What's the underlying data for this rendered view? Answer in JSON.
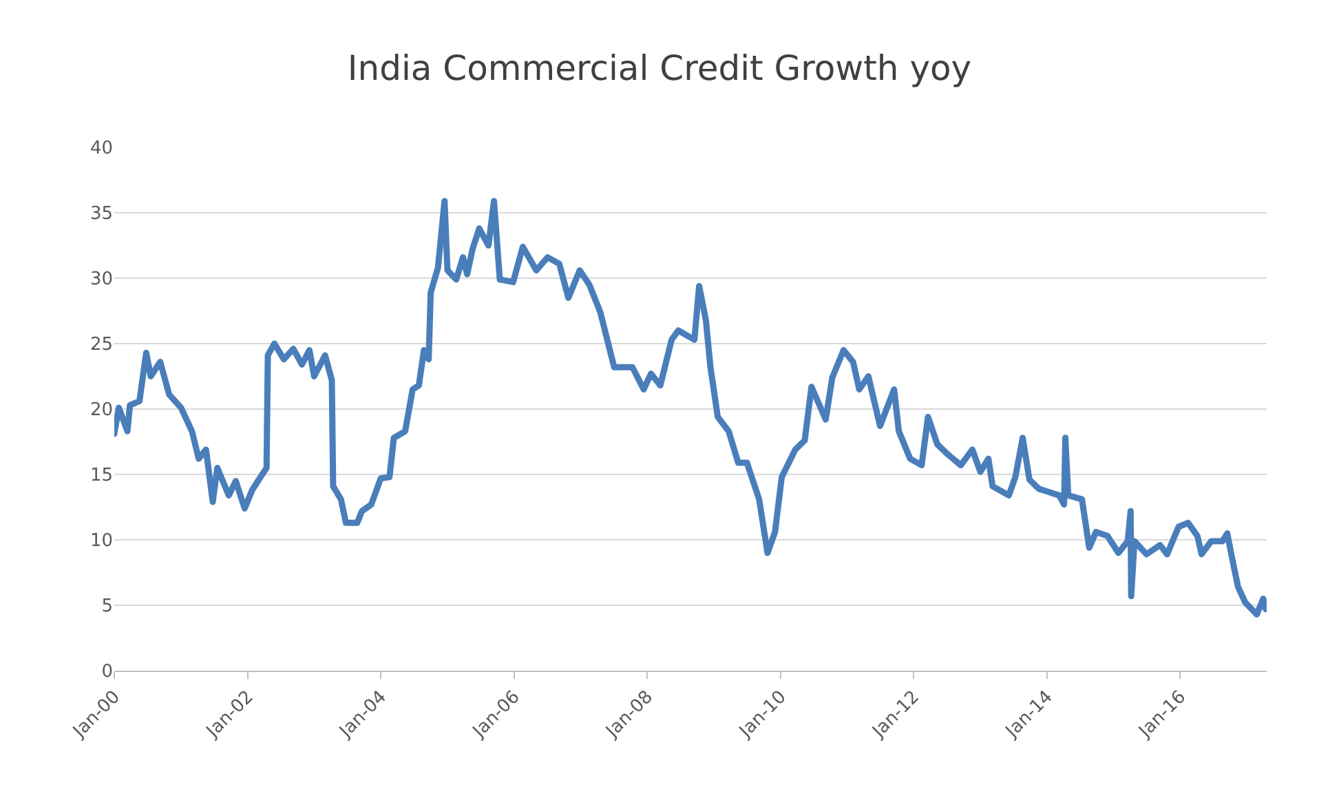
{
  "chart_data": {
    "type": "line",
    "title": "India Commercial Credit Growth yoy",
    "series": [
      {
        "color": "#4a7ebb",
        "x": [
          "2000-01-01",
          "2000-01-26",
          "2000-03-13",
          "2000-03-27",
          "2000-05-18",
          "2000-06-24",
          "2000-07-19",
          "2000-09-09",
          "2000-10-28",
          "2001-01-01",
          "2001-03-02",
          "2001-04-08",
          "2001-05-18",
          "2001-06-24",
          "2001-07-19",
          "2001-09-20",
          "2001-10-28",
          "2001-12-16",
          "2002-01-26",
          "2002-03-13",
          "2002-04-15",
          "2002-04-22",
          "2002-05-28",
          "2002-07-19",
          "2002-09-09",
          "2002-10-26",
          "2002-12-06",
          "2003-01-01",
          "2003-03-02",
          "2003-04-08",
          "2003-04-15",
          "2003-05-28",
          "2003-06-24",
          "2003-08-25",
          "2003-09-20",
          "2003-11-10",
          "2004-01-01",
          "2004-02-18",
          "2004-03-13",
          "2004-05-14",
          "2004-06-24",
          "2004-07-28",
          "2004-08-25",
          "2004-09-20",
          "2004-10-01",
          "2004-11-10",
          "2004-12-16",
          "2005-01-01",
          "2005-02-18",
          "2005-03-27",
          "2005-04-19",
          "2005-05-18",
          "2005-06-24",
          "2005-08-14",
          "2005-09-13",
          "2005-10-15",
          "2005-12-27",
          "2006-02-18",
          "2006-05-03",
          "2006-07-04",
          "2006-09-06",
          "2006-10-26",
          "2006-12-27",
          "2007-02-18",
          "2007-04-19",
          "2007-07-04",
          "2007-10-12",
          "2007-12-13",
          "2008-01-22",
          "2008-03-13",
          "2008-05-14",
          "2008-06-20",
          "2008-09-16",
          "2008-10-12",
          "2008-11-18",
          "2008-12-13",
          "2009-01-22",
          "2009-03-23",
          "2009-05-14",
          "2009-07-01",
          "2009-09-06",
          "2009-10-22",
          "2009-12-02",
          "2010-01-08",
          "2010-03-23",
          "2010-05-14",
          "2010-06-20",
          "2010-09-06",
          "2010-10-12",
          "2010-12-13",
          "2011-02-03",
          "2011-03-09",
          "2011-04-28",
          "2011-07-01",
          "2011-09-16",
          "2011-10-12",
          "2011-12-13",
          "2012-02-14",
          "2012-03-20",
          "2012-05-10",
          "2012-07-01",
          "2012-09-16",
          "2012-11-18",
          "2013-01-01",
          "2013-02-14",
          "2013-03-09",
          "2013-06-06",
          "2013-07-12",
          "2013-08-21",
          "2013-09-27",
          "2013-11-18",
          "2014-03-09",
          "2014-04-05",
          "2014-04-12",
          "2014-04-28",
          "2014-07-12",
          "2014-08-21",
          "2014-09-27",
          "2014-11-29",
          "2015-01-28",
          "2015-03-20",
          "2015-04-05",
          "2015-04-08",
          "2015-04-26",
          "2015-07-01",
          "2015-09-13",
          "2015-10-22",
          "2015-12-24",
          "2016-02-14",
          "2016-04-05",
          "2016-04-28",
          "2016-06-20",
          "2016-08-21",
          "2016-09-16",
          "2016-10-08",
          "2016-11-14",
          "2016-12-24",
          "2017-02-25",
          "2017-04-01",
          "2017-04-15"
        ],
        "values": [
          18.1,
          20.1,
          18.3,
          20.3,
          20.6,
          24.3,
          22.5,
          23.6,
          21.1,
          20.1,
          18.3,
          16.2,
          16.9,
          12.9,
          15.5,
          13.4,
          14.5,
          12.4,
          13.8,
          14.8,
          15.5,
          24.1,
          25.0,
          23.8,
          24.6,
          23.4,
          24.5,
          22.5,
          24.1,
          22.2,
          14.1,
          13.1,
          11.3,
          11.3,
          12.2,
          12.7,
          14.7,
          14.8,
          17.8,
          18.3,
          21.5,
          21.8,
          24.5,
          23.8,
          28.9,
          30.8,
          35.9,
          30.6,
          29.9,
          31.6,
          30.3,
          32.2,
          33.8,
          32.5,
          35.9,
          29.9,
          29.7,
          32.4,
          30.6,
          31.6,
          31.1,
          28.5,
          30.6,
          29.5,
          27.4,
          23.2,
          23.2,
          21.5,
          22.7,
          21.8,
          25.3,
          26.0,
          25.3,
          29.4,
          26.8,
          23.2,
          19.4,
          18.3,
          15.9,
          15.9,
          13.1,
          9.0,
          10.6,
          14.8,
          16.9,
          17.6,
          21.7,
          19.2,
          22.4,
          24.5,
          23.6,
          21.5,
          22.5,
          18.7,
          21.5,
          18.3,
          16.2,
          15.7,
          19.4,
          17.3,
          16.6,
          15.7,
          16.9,
          15.2,
          16.2,
          14.1,
          13.4,
          14.8,
          17.8,
          14.6,
          13.9,
          13.4,
          12.7,
          17.8,
          13.4,
          13.1,
          9.4,
          10.6,
          10.3,
          9.0,
          9.9,
          12.2,
          5.7,
          9.9,
          8.9,
          9.6,
          8.9,
          11.0,
          11.3,
          10.3,
          8.9,
          9.9,
          9.9,
          10.5,
          8.9,
          6.4,
          5.2,
          4.3,
          5.5,
          4.7
        ]
      }
    ],
    "xlim": [
      "2000-01-01",
      "2017-04-20"
    ],
    "xticks": [
      {
        "value": "2000-01-01",
        "label": "Jan-00"
      },
      {
        "value": "2002-01-01",
        "label": "Jan-02"
      },
      {
        "value": "2004-01-01",
        "label": "Jan-04"
      },
      {
        "value": "2006-01-01",
        "label": "Jan-06"
      },
      {
        "value": "2008-01-01",
        "label": "Jan-08"
      },
      {
        "value": "2010-01-01",
        "label": "Jan-10"
      },
      {
        "value": "2012-01-01",
        "label": "Jan-12"
      },
      {
        "value": "2014-01-01",
        "label": "Jan-14"
      },
      {
        "value": "2016-01-01",
        "label": "Jan-16"
      }
    ],
    "ylim": [
      0,
      40
    ],
    "yticks": [
      0,
      5,
      10,
      15,
      20,
      25,
      30,
      35,
      40
    ],
    "grid": "y",
    "marker": "none",
    "line_style": "solid"
  }
}
